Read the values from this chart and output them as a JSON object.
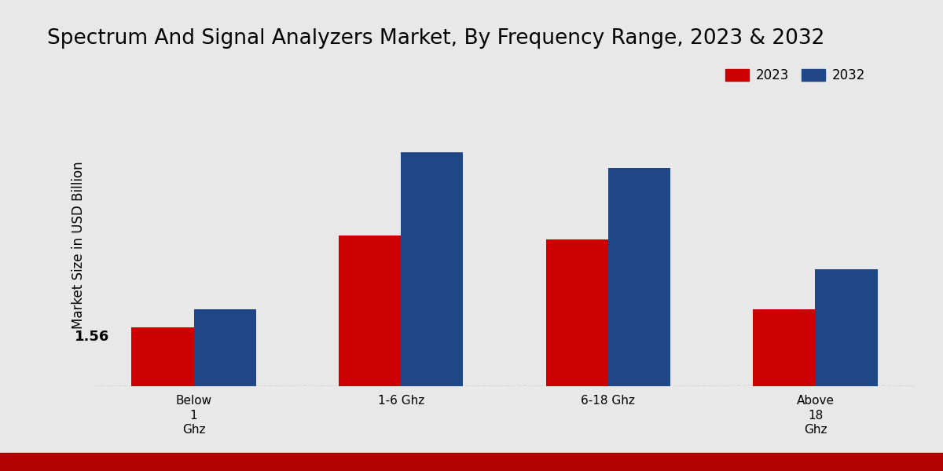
{
  "title": "Spectrum And Signal Analyzers Market, By Frequency Range, 2023 & 2032",
  "ylabel": "Market Size in USD Billion",
  "categories": [
    "Below\n1\nGhz",
    "1-6 Ghz",
    "6-18 Ghz",
    "Above\n18\nGhz"
  ],
  "values_2023": [
    1.56,
    4.0,
    3.9,
    2.05
  ],
  "values_2032": [
    2.05,
    6.2,
    5.8,
    3.1
  ],
  "color_2023": "#cc0000",
  "color_2032": "#1f4788",
  "annotation_text": "1.56",
  "annotation_bar": 0,
  "bar_width": 0.3,
  "ylim": [
    0,
    7.5
  ],
  "legend_labels": [
    "2023",
    "2032"
  ],
  "bg_color": "#e8e8e8",
  "red_bar_color": "#b30000",
  "dashed_line_color": "#999999",
  "title_fontsize": 19,
  "label_fontsize": 12,
  "tick_fontsize": 11,
  "legend_fontsize": 12
}
